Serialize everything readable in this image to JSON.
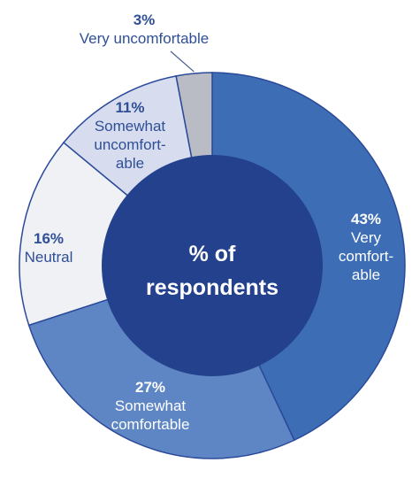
{
  "chart_data": {
    "type": "pie",
    "variant": "donut",
    "center_label": [
      "% of",
      "respondents"
    ],
    "slices": [
      {
        "name": "Very comfortable",
        "value": 43,
        "percent_label": "43%",
        "label_lines": [
          "Very",
          "comfort-",
          "able"
        ],
        "color": "#3d6eb5",
        "text_color": "#ffffff",
        "label_position": "inside"
      },
      {
        "name": "Somewhat comfortable",
        "value": 27,
        "percent_label": "27%",
        "label_lines": [
          "Somewhat",
          "comfortable"
        ],
        "color": "#5e86c5",
        "text_color": "#ffffff",
        "label_position": "inside"
      },
      {
        "name": "Neutral",
        "value": 16,
        "percent_label": "16%",
        "label_lines": [
          "Neutral"
        ],
        "color": "#f0f1f5",
        "text_color": "#2f4f96",
        "label_position": "inside"
      },
      {
        "name": "Somewhat uncomfortable",
        "value": 11,
        "percent_label": "11%",
        "label_lines": [
          "Somewhat",
          "uncomfort-",
          "able"
        ],
        "color": "#d7ddef",
        "text_color": "#2f4f96",
        "label_position": "inside"
      },
      {
        "name": "Very uncomfortable",
        "value": 3,
        "percent_label": "3%",
        "label_lines": [
          "Very uncomfortable"
        ],
        "color": "#b9bcc4",
        "text_color": "#2f4f96",
        "label_position": "outside"
      }
    ],
    "center_color": "#23418c",
    "edge_color": "#2b4a9a",
    "start": "top",
    "direction": "clockwise"
  }
}
